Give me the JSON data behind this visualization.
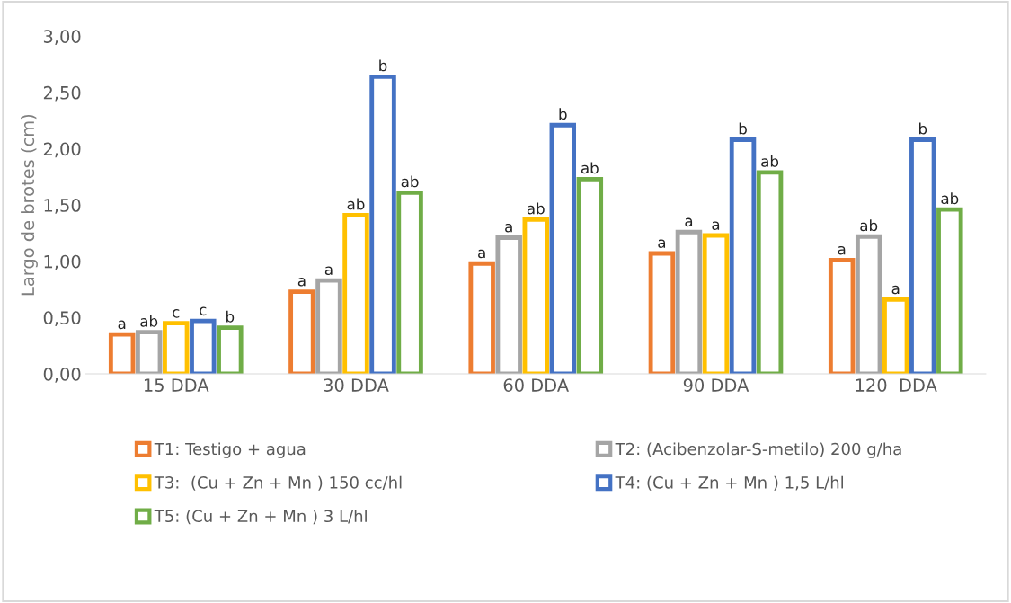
{
  "chart_data": {
    "type": "bar",
    "ylabel": "Largo de brotes (cm)",
    "categories": [
      "15 DDA",
      "30 DDA",
      "60 DDA",
      "90 DDA",
      "120  DDA"
    ],
    "series": [
      {
        "name": "T1: Testigo + agua",
        "color": "#ed7d31",
        "values": [
          0.35,
          0.73,
          0.98,
          1.07,
          1.01
        ]
      },
      {
        "name": "T2: (Acibenzolar-S-metilo) 200 g/ha",
        "color": "#a5a5a5",
        "values": [
          0.37,
          0.83,
          1.21,
          1.26,
          1.22
        ]
      },
      {
        "name": "T3:  (Cu + Zn + Mn ) 150 cc/hl",
        "color": "#ffc000",
        "values": [
          0.45,
          1.41,
          1.37,
          1.23,
          0.66
        ]
      },
      {
        "name": "T4: (Cu + Zn + Mn ) 1,5 L/hl",
        "color": "#4472c4",
        "values": [
          0.47,
          2.64,
          2.21,
          2.08,
          2.08
        ]
      },
      {
        "name": "T5: (Cu + Zn + Mn ) 3 L/hl",
        "color": "#70ad47",
        "values": [
          0.41,
          1.61,
          1.73,
          1.79,
          1.46
        ]
      }
    ],
    "value_labels": [
      [
        "a",
        "a",
        "a",
        "a",
        "a"
      ],
      [
        "ab",
        "a",
        "a",
        "a",
        "ab"
      ],
      [
        "c",
        "ab",
        "ab",
        "a",
        "a"
      ],
      [
        "c",
        "b",
        "b",
        "b",
        "b"
      ],
      [
        "b",
        "ab",
        "ab",
        "ab",
        "ab"
      ]
    ],
    "ylim": [
      0,
      3
    ],
    "yticks": [
      {
        "value": 0,
        "label": "0,00"
      },
      {
        "value": 0.5,
        "label": "0,50"
      },
      {
        "value": 1,
        "label": "1,00"
      },
      {
        "value": 1.5,
        "label": "1,50"
      },
      {
        "value": 2,
        "label": "2,00"
      },
      {
        "value": 2.5,
        "label": "2,50"
      },
      {
        "value": 3,
        "label": "3,00"
      }
    ],
    "grid": false,
    "legend": "bottom"
  }
}
